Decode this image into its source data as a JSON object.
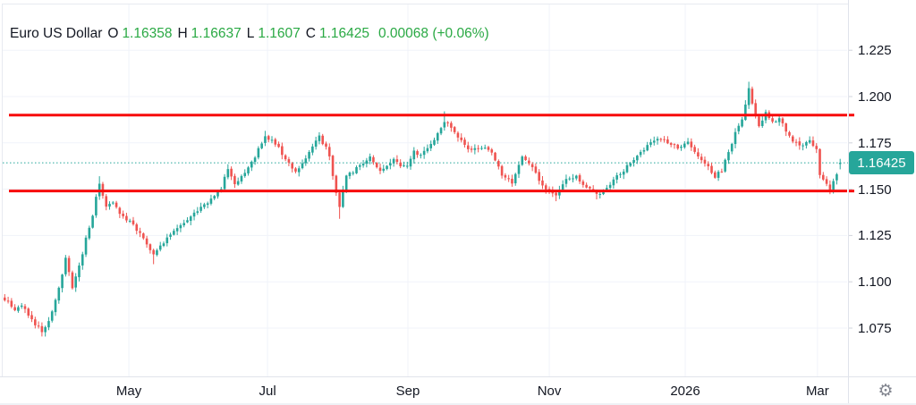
{
  "legend": {
    "symbol_title": "Euro US Dollar",
    "open_label": "O",
    "open": "1.16358",
    "high_label": "H",
    "high": "1.16637",
    "low_label": "L",
    "low": "1.1607",
    "close_label": "C",
    "close": "1.16425",
    "change": "0.00068 (+0.06%)"
  },
  "price_axis": {
    "ticks": [
      {
        "label": "1.225",
        "price": 1.225
      },
      {
        "label": "1.200",
        "price": 1.2
      },
      {
        "label": "1.175",
        "price": 1.175
      },
      {
        "label": "1.150",
        "price": 1.15
      },
      {
        "label": "1.125",
        "price": 1.125
      },
      {
        "label": "1.100",
        "price": 1.1
      },
      {
        "label": "1.075",
        "price": 1.075
      }
    ],
    "current_price_label": "1.16425"
  },
  "time_axis": {
    "ticks": [
      {
        "label": "May",
        "i": 36.7
      },
      {
        "label": "Jul",
        "i": 77.7
      },
      {
        "label": "Sep",
        "i": 119.2
      },
      {
        "label": "Nov",
        "i": 161.0
      },
      {
        "label": "2026",
        "i": 201.2
      },
      {
        "label": "Mar",
        "i": 240.3
      }
    ]
  },
  "footer": {
    "settings_icon_name": "gear-icon"
  },
  "icons": {
    "gear": "⚙"
  },
  "colors": {
    "background": "#ffffff",
    "grid": "#f0f3fa",
    "border": "#e0e3eb",
    "text": "#131722",
    "up": "#26a69a",
    "down": "#ef5350",
    "legend_positive": "#2aa944",
    "level_line": "#f70a0a",
    "price_tag_bg": "#26a69a",
    "axis_tick": "#d1d4dc"
  },
  "chart_data": {
    "type": "candlestick",
    "symbol": "Euro US Dollar",
    "legend_ohlc": {
      "o": 1.16358,
      "h": 1.16637,
      "l": 1.1607,
      "c": 1.16425,
      "change": 0.00068,
      "change_pct": 0.06
    },
    "current_price": 1.16425,
    "n_candles": 248,
    "x_tick_labels": [
      "May",
      "Jul",
      "Sep",
      "Nov",
      "2026",
      "Mar"
    ],
    "y_tick_values": [
      1.225,
      1.2,
      1.175,
      1.15,
      1.125,
      1.1,
      1.075
    ],
    "ylim_visible": [
      1.049,
      1.25
    ],
    "grid": true,
    "legend_position": "top-left",
    "horizontal_lines": [
      {
        "name": "resistance-line",
        "price": 1.19
      },
      {
        "name": "support-line",
        "price": 1.149
      }
    ],
    "price_path_anchors": [
      [
        0,
        1.091
      ],
      [
        3,
        1.084
      ],
      [
        5,
        1.088
      ],
      [
        8,
        1.079
      ],
      [
        11,
        1.0735
      ],
      [
        13,
        1.078
      ],
      [
        15,
        1.09
      ],
      [
        17,
        1.103
      ],
      [
        18,
        1.112
      ],
      [
        19,
        1.105
      ],
      [
        20,
        1.097
      ],
      [
        22,
        1.108
      ],
      [
        24,
        1.123
      ],
      [
        26,
        1.135
      ],
      [
        27,
        1.146
      ],
      [
        28,
        1.152
      ],
      [
        29,
        1.147
      ],
      [
        30,
        1.141
      ],
      [
        32,
        1.143
      ],
      [
        34,
        1.137
      ],
      [
        36,
        1.133
      ],
      [
        38,
        1.131
      ],
      [
        40,
        1.126
      ],
      [
        42,
        1.12
      ],
      [
        44,
        1.115
      ],
      [
        46,
        1.119
      ],
      [
        48,
        1.124
      ],
      [
        51,
        1.128
      ],
      [
        54,
        1.134
      ],
      [
        57,
        1.138
      ],
      [
        59,
        1.141
      ],
      [
        62,
        1.146
      ],
      [
        64,
        1.151
      ],
      [
        66,
        1.161
      ],
      [
        67,
        1.156
      ],
      [
        68,
        1.152
      ],
      [
        70,
        1.157
      ],
      [
        72,
        1.162
      ],
      [
        74,
        1.168
      ],
      [
        77,
        1.179
      ],
      [
        79,
        1.176
      ],
      [
        81,
        1.172
      ],
      [
        83,
        1.166
      ],
      [
        86,
        1.159
      ],
      [
        89,
        1.166
      ],
      [
        91,
        1.173
      ],
      [
        93,
        1.178
      ],
      [
        95,
        1.172
      ],
      [
        96,
        1.168
      ],
      [
        97,
        1.158
      ],
      [
        99,
        1.1395
      ],
      [
        100,
        1.15
      ],
      [
        101,
        1.157
      ],
      [
        103,
        1.159
      ],
      [
        105,
        1.163
      ],
      [
        108,
        1.168
      ],
      [
        111,
        1.16
      ],
      [
        113,
        1.163
      ],
      [
        115,
        1.166
      ],
      [
        117,
        1.162
      ],
      [
        119,
        1.163
      ],
      [
        121,
        1.17
      ],
      [
        123,
        1.169
      ],
      [
        125,
        1.173
      ],
      [
        127,
        1.177
      ],
      [
        129,
        1.183
      ],
      [
        130,
        1.187
      ],
      [
        131,
        1.185
      ],
      [
        132,
        1.183
      ],
      [
        134,
        1.178
      ],
      [
        136,
        1.174
      ],
      [
        138,
        1.171
      ],
      [
        141,
        1.173
      ],
      [
        144,
        1.17
      ],
      [
        147,
        1.158
      ],
      [
        150,
        1.154
      ],
      [
        153,
        1.167
      ],
      [
        156,
        1.162
      ],
      [
        158,
        1.154
      ],
      [
        161,
        1.149
      ],
      [
        163,
        1.146
      ],
      [
        166,
        1.155
      ],
      [
        169,
        1.157
      ],
      [
        172,
        1.151
      ],
      [
        175,
        1.147
      ],
      [
        178,
        1.15
      ],
      [
        181,
        1.157
      ],
      [
        184,
        1.162
      ],
      [
        187,
        1.168
      ],
      [
        191,
        1.175
      ],
      [
        194,
        1.177
      ],
      [
        197,
        1.174
      ],
      [
        199,
        1.172
      ],
      [
        202,
        1.175
      ],
      [
        204,
        1.171
      ],
      [
        206,
        1.166
      ],
      [
        208,
        1.162
      ],
      [
        210,
        1.157
      ],
      [
        212,
        1.16
      ],
      [
        214,
        1.17
      ],
      [
        216,
        1.18
      ],
      [
        218,
        1.188
      ],
      [
        219,
        1.196
      ],
      [
        220,
        1.204
      ],
      [
        221,
        1.197
      ],
      [
        222,
        1.19
      ],
      [
        223,
        1.185
      ],
      [
        225,
        1.191
      ],
      [
        227,
        1.186
      ],
      [
        229,
        1.189
      ],
      [
        231,
        1.181
      ],
      [
        233,
        1.176
      ],
      [
        235,
        1.173
      ],
      [
        238,
        1.176
      ],
      [
        240,
        1.172
      ],
      [
        241,
        1.157
      ],
      [
        243,
        1.152
      ],
      [
        244,
        1.15
      ],
      [
        245,
        1.154
      ],
      [
        246,
        1.159
      ],
      [
        247,
        1.16425
      ]
    ],
    "wick_extremes": [
      {
        "i": 11,
        "l": 1.0705
      },
      {
        "i": 18,
        "h": 1.1145
      },
      {
        "i": 28,
        "h": 1.157
      },
      {
        "i": 44,
        "l": 1.1095
      },
      {
        "i": 66,
        "h": 1.1635
      },
      {
        "i": 77,
        "h": 1.1815
      },
      {
        "i": 93,
        "h": 1.18
      },
      {
        "i": 99,
        "l": 1.134
      },
      {
        "i": 130,
        "h": 1.192
      },
      {
        "i": 163,
        "l": 1.1435
      },
      {
        "i": 175,
        "l": 1.1445
      },
      {
        "i": 220,
        "h": 1.208
      },
      {
        "i": 244,
        "l": 1.1473
      }
    ],
    "last_candle": {
      "o": 1.16358,
      "h": 1.16637,
      "l": 1.1607,
      "c": 1.16425
    }
  }
}
